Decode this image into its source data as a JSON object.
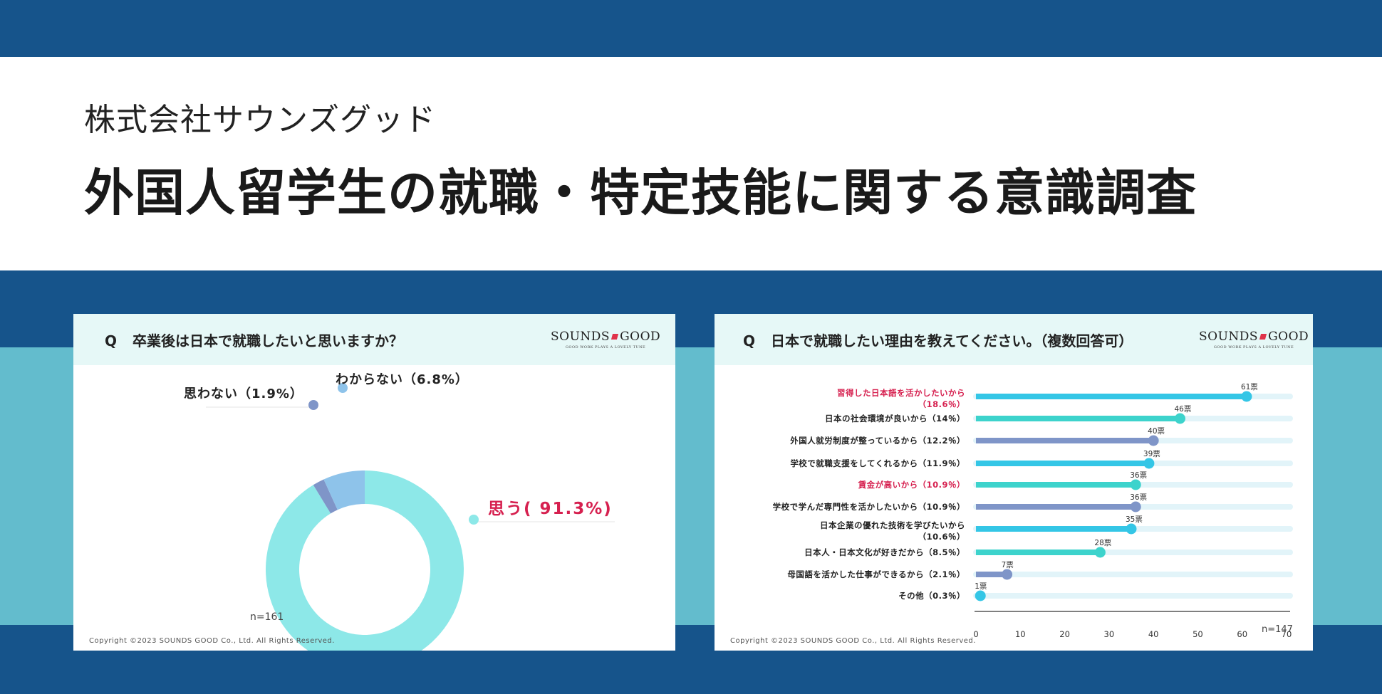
{
  "header": {
    "company": "株式会社サウンズグッド",
    "title": "外国人留学生の就職・特定技能に関する意識調査"
  },
  "logo": {
    "left_word": "SOUNDS",
    "right_word": "GOOD",
    "tagline": "GOOD WORK PLAYS A LOVELY TUNE"
  },
  "left_card": {
    "question": "卒業後は日本で就職したいと思いますか？",
    "q_prefix": "Q",
    "n": "n=161",
    "copyright": "Copyright ©2023 SOUNDS GOOD Co., Ltd. All Rights Reserved."
  },
  "right_card": {
    "question": "日本で就職したい理由を教えてください。（複数回答可）",
    "q_prefix": "Q",
    "n": "n=147",
    "copyright": "Copyright ©2023 SOUNDS GOOD Co., Ltd. All Rights Reserved."
  },
  "chart_data": [
    {
      "type": "pie",
      "variant": "donut",
      "categories": [
        "思う",
        "思わない",
        "わからない"
      ],
      "values": [
        91.3,
        1.9,
        6.8
      ],
      "labels": [
        "思う( 91.3%)",
        "思わない（1.9%）",
        "わからない（6.8%）"
      ],
      "colors": [
        "#8de8e8",
        "#7f95c8",
        "#8ec3ea"
      ],
      "label_colors": [
        "#d6204f",
        "#222222",
        "#222222"
      ]
    },
    {
      "type": "bar",
      "orientation": "horizontal",
      "categories": [
        "習得した日本語を活かしたいから|（18.6％）",
        "日本の社会環境が良いから（14％）",
        "外国人就労制度が整っているから（12.2％）",
        "学校で就職支援をしてくれるから（11.9％）",
        "賃金が高いから（10.9％）",
        "学校で学んだ専門性を活かしたいから（10.9％）",
        "日本企業の優れた技術を学びたいから|（10.6％）",
        "日本人・日本文化が好きだから（8.5％）",
        "母国語を活かした仕事ができるから（2.1％）",
        "その他（0.3％）"
      ],
      "values": [
        61,
        46,
        40,
        39,
        36,
        36,
        35,
        28,
        7,
        1
      ],
      "value_labels": [
        "61票",
        "46票",
        "40票",
        "39票",
        "36票",
        "36票",
        "35票",
        "28票",
        "7票",
        "1票"
      ],
      "bar_colors": [
        "#34c6e6",
        "#3dd3cc",
        "#7f95c8",
        "#34c6e6",
        "#3dd3cc",
        "#7f95c8",
        "#34c6e6",
        "#3dd3cc",
        "#7f95c8",
        "#34c6e6"
      ],
      "label_colors": [
        "#d6204f",
        "#222222",
        "#222222",
        "#222222",
        "#d6204f",
        "#222222",
        "#222222",
        "#222222",
        "#222222",
        "#222222"
      ],
      "track_color": "#e2f4f9",
      "xlim": [
        0,
        70
      ],
      "xticks": [
        0,
        10,
        20,
        30,
        40,
        50,
        60,
        70
      ]
    }
  ]
}
